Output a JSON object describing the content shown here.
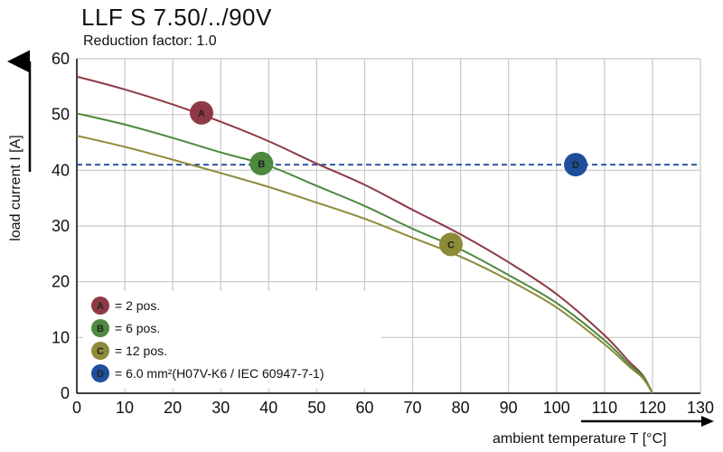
{
  "chart_data": {
    "type": "line",
    "title": "LLF S 7.50/../90V",
    "subtitle": "Reduction factor: 1.0",
    "xlabel": "ambient temperature T [°C]",
    "ylabel": "load current I [A]",
    "xlim": [
      0,
      130
    ],
    "ylim": [
      0,
      60
    ],
    "xticks": [
      "0",
      "10",
      "20",
      "30",
      "40",
      "50",
      "60",
      "70",
      "80",
      "90",
      "100",
      "110",
      "120",
      "130"
    ],
    "yticks": [
      "0",
      "10",
      "20",
      "30",
      "40",
      "50",
      "60"
    ],
    "grid": true,
    "series": [
      {
        "name": "A",
        "label": "= 2 pos.",
        "color": "#8e3a45",
        "x": [
          0,
          10,
          20,
          30,
          40,
          50,
          60,
          70,
          80,
          90,
          100,
          110,
          115,
          118,
          120
        ],
        "y": [
          56.8,
          54.5,
          51.8,
          48.7,
          45.2,
          41.2,
          37.4,
          32.9,
          28.5,
          23.5,
          17.8,
          10.4,
          5.8,
          3.2,
          0
        ],
        "marker": {
          "x": 26,
          "y": 50.3
        }
      },
      {
        "name": "B",
        "label": "= 6 pos.",
        "color": "#4c8a3f",
        "x": [
          0,
          10,
          20,
          30,
          40,
          50,
          60,
          70,
          80,
          90,
          100,
          110,
          115,
          118,
          120
        ],
        "y": [
          50.2,
          48.2,
          45.8,
          43.2,
          40.8,
          37.2,
          33.6,
          29.5,
          25.8,
          21.2,
          16.2,
          9.5,
          5.3,
          3.0,
          0
        ],
        "marker": {
          "x": 38.5,
          "y": 41.2
        }
      },
      {
        "name": "C",
        "label": "= 12 pos.",
        "color": "#8d8a3a",
        "x": [
          0,
          10,
          20,
          30,
          40,
          50,
          60,
          70,
          80,
          90,
          100,
          110,
          115,
          118,
          120
        ],
        "y": [
          46.2,
          44.2,
          41.9,
          39.5,
          37.0,
          34.2,
          31.3,
          27.9,
          24.5,
          20.3,
          15.4,
          8.8,
          4.9,
          2.7,
          0
        ],
        "marker": {
          "x": 78,
          "y": 26.7
        }
      }
    ],
    "reference_line": {
      "name": "D",
      "label": "= 6.0 mm²(H07V-K6 / IEC 60947-7-1)",
      "color": "#1f4e9c",
      "y": 41,
      "style": "dashed",
      "marker": {
        "x": 104,
        "y": 41
      }
    },
    "legend_position": "bottom-left"
  }
}
